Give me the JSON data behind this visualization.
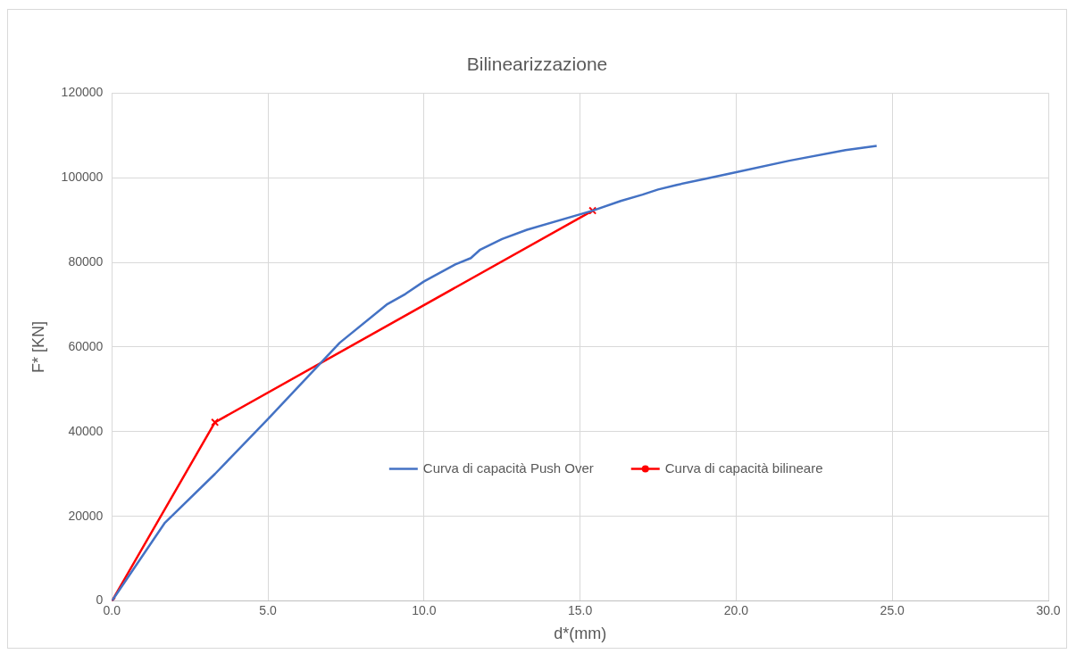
{
  "chart_data": {
    "type": "line",
    "title": "Bilinearizzazione",
    "xlabel": "d*(mm)",
    "ylabel": "F* [KN]",
    "xlim": [
      0,
      30
    ],
    "xticks": [
      {
        "value": 0,
        "label": "0.0"
      },
      {
        "value": 5,
        "label": "5.0"
      },
      {
        "value": 10,
        "label": "10.0"
      },
      {
        "value": 15,
        "label": "15.0"
      },
      {
        "value": 20,
        "label": "20.0"
      },
      {
        "value": 25,
        "label": "25.0"
      },
      {
        "value": 30,
        "label": "30.0"
      }
    ],
    "ylim": [
      0,
      120000
    ],
    "yticks": [
      0,
      20000,
      40000,
      60000,
      80000,
      100000,
      120000
    ],
    "grid": true,
    "legend": "center",
    "series": [
      {
        "name": "Curva di capacità Push Over",
        "color": "#4472c4",
        "marker": "none",
        "x": [
          0,
          1.7,
          3.3,
          5.0,
          7.3,
          8.8,
          9.4,
          10.0,
          10.5,
          11.0,
          11.5,
          11.8,
          12.5,
          13.3,
          15.4,
          16.3,
          17.0,
          17.5,
          18.1,
          19.0,
          20.0,
          21.7,
          23.5,
          24.5
        ],
        "values": [
          0,
          18500,
          30000,
          43000,
          61000,
          70000,
          72500,
          75500,
          77500,
          79500,
          81000,
          83000,
          85500,
          87700,
          92200,
          94500,
          96000,
          97200,
          98300,
          99700,
          101300,
          104000,
          106500,
          107500
        ]
      },
      {
        "name": "Curva di capacità bilineare",
        "color": "#ff0000",
        "marker": "cross",
        "x": [
          0,
          3.3,
          15.4
        ],
        "values": [
          0,
          42200,
          92200
        ]
      }
    ]
  }
}
